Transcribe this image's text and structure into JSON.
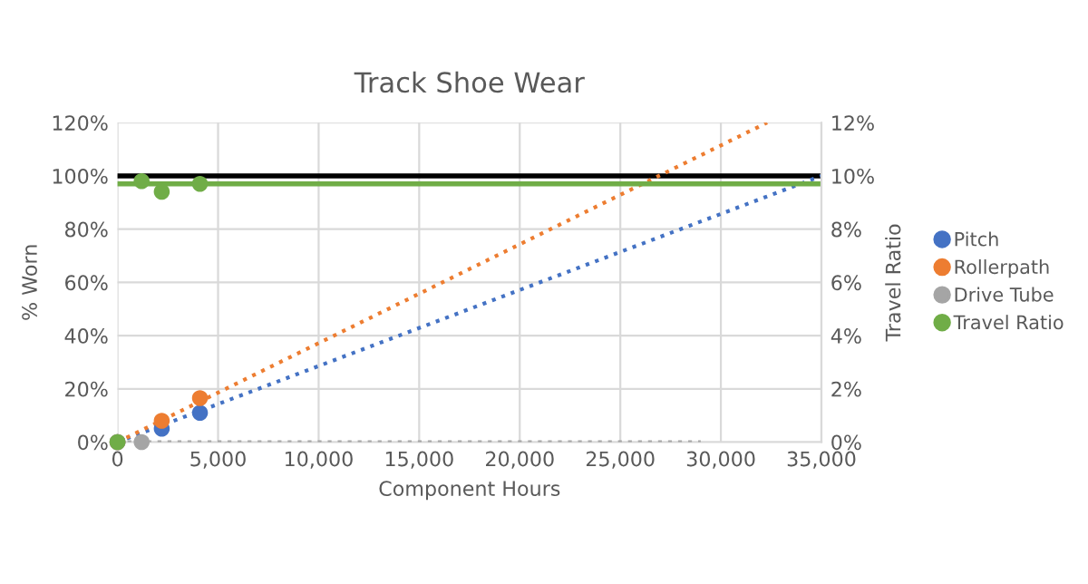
{
  "chart_data": {
    "type": "scatter",
    "title": "Track Shoe Wear",
    "xlabel": "Component Hours",
    "ylabel": "% Worn",
    "y2label": "Travel Ratio",
    "xlim": [
      0,
      35000
    ],
    "xticks": [
      {
        "value": 0,
        "label": "0"
      },
      {
        "value": 5000,
        "label": "5,000"
      },
      {
        "value": 10000,
        "label": "10,000"
      },
      {
        "value": 15000,
        "label": "15,000"
      },
      {
        "value": 20000,
        "label": "20,000"
      },
      {
        "value": 25000,
        "label": "25,000"
      },
      {
        "value": 30000,
        "label": "30,000"
      },
      {
        "value": 35000,
        "label": "35,000"
      }
    ],
    "ylim": [
      0,
      120
    ],
    "yticks": [
      {
        "value": 0,
        "label": "0%"
      },
      {
        "value": 20,
        "label": "20%"
      },
      {
        "value": 40,
        "label": "40%"
      },
      {
        "value": 60,
        "label": "60%"
      },
      {
        "value": 80,
        "label": "80%"
      },
      {
        "value": 100,
        "label": "100%"
      },
      {
        "value": 120,
        "label": "120%"
      }
    ],
    "y2lim": [
      0,
      12
    ],
    "y2ticks": [
      {
        "value": 0,
        "label": "0%"
      },
      {
        "value": 2,
        "label": "2%"
      },
      {
        "value": 4,
        "label": "4%"
      },
      {
        "value": 6,
        "label": "6%"
      },
      {
        "value": 8,
        "label": "8%"
      },
      {
        "value": 10,
        "label": "10%"
      },
      {
        "value": 12,
        "label": "12%"
      }
    ],
    "series": [
      {
        "type": "line",
        "marker": "none",
        "color": "#4472c4",
        "line_style": "dotted",
        "x": [
          0,
          35000
        ],
        "values": [
          0,
          100
        ]
      },
      {
        "type": "line",
        "marker": "none",
        "color": "#ed7d31",
        "line_style": "dotted",
        "x": [
          0,
          32300
        ],
        "values": [
          0,
          120
        ]
      },
      {
        "type": "line",
        "marker": "none",
        "color": "#a5a5a5",
        "line_style": "dotted",
        "x": [
          0,
          29000
        ],
        "values": [
          0,
          0
        ]
      },
      {
        "name": "Pitch",
        "color": "#4472c4",
        "x": [
          0,
          2200,
          4100
        ],
        "values": [
          0,
          5,
          11
        ]
      },
      {
        "name": "Rollerpath",
        "color": "#ed7d31",
        "x": [
          0,
          2200,
          4100
        ],
        "values": [
          0,
          8,
          16.5
        ]
      },
      {
        "name": "Drive Tube",
        "color": "#a5a5a5",
        "x": [
          0,
          1200
        ],
        "values": [
          0,
          0
        ]
      },
      {
        "name": "Travel Ratio",
        "color": "#70ad47",
        "axis": "y2",
        "x": [
          0,
          1200,
          2200,
          4100
        ],
        "values": [
          0,
          9.8,
          9.4,
          9.7
        ]
      }
    ],
    "ref_lines": [
      {
        "axis": "y",
        "value": 100,
        "label": null,
        "color": "#000000"
      },
      {
        "axis": "y2",
        "value": 9.7,
        "label": null,
        "color": "#70ad47"
      }
    ],
    "marker": "circle",
    "grid": true,
    "legend": "right"
  }
}
